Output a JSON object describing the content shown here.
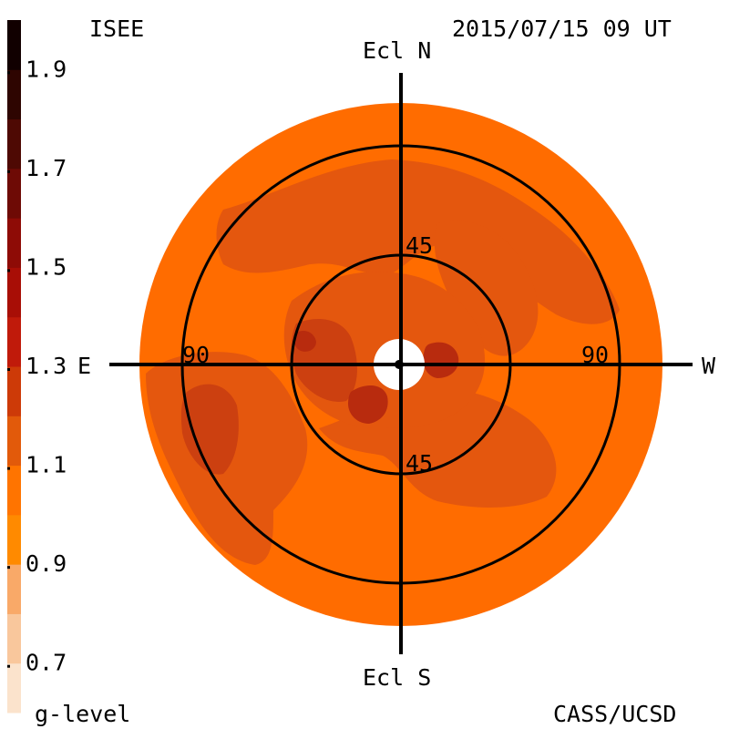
{
  "header": {
    "source": "ISEE",
    "timestamp": "2015/07/15 09 UT"
  },
  "footer": {
    "legend_title": "g-level",
    "credit": "CASS/UCSD"
  },
  "map": {
    "directions": {
      "north": "Ecl N",
      "south": "Ecl S",
      "east": "E",
      "west": "W"
    },
    "elongation_labels": {
      "inner_top": "45",
      "inner_bottom": "45",
      "outer_left": "90",
      "outer_right": "90"
    }
  },
  "colorbar": {
    "tick_labels": [
      "1.9",
      "1.7",
      "1.5",
      "1.3",
      "1.1",
      "0.9",
      "0.7"
    ],
    "range": [
      0.6,
      2.0
    ],
    "colors": [
      "#fbe3cc",
      "#f9c79c",
      "#f9a968",
      "#ff8a00",
      "#ff7400",
      "#e25a0a",
      "#cd3a08",
      "#c01a0a",
      "#a80e06",
      "#8e0b06",
      "#6e0a05",
      "#4e0903",
      "#2e0501",
      "#110000"
    ]
  },
  "colors": {
    "disk_base": "#ff6c00",
    "mid": "#e4570e",
    "dark": "#cc4010",
    "darker": "#b82b0e"
  }
}
